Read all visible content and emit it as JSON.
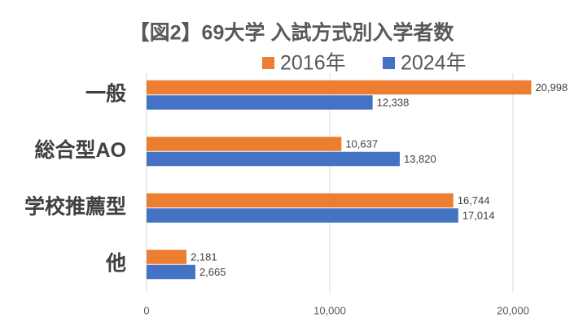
{
  "chart_data": {
    "type": "bar",
    "orientation": "horizontal",
    "title": "【図2】69大学 入試方式別入学者数",
    "categories": [
      "一般",
      "総合型AO",
      "学校推薦型",
      "他"
    ],
    "series": [
      {
        "name": "2016年",
        "color": "#ED7D31",
        "values": [
          20998,
          10637,
          16744,
          2181
        ],
        "value_labels": [
          "20,998",
          "10,637",
          "16,744",
          "2,181"
        ]
      },
      {
        "name": "2024年",
        "color": "#4472C4",
        "values": [
          12338,
          13820,
          17014,
          2665
        ],
        "value_labels": [
          "12,338",
          "13,820",
          "17,014",
          "2,665"
        ]
      }
    ],
    "xlim": [
      0,
      23000
    ],
    "xticks": [
      0,
      {
        "value": 10000,
        "label": "10,000"
      },
      {
        "value": 20000,
        "label": "20,000"
      }
    ],
    "grid": true,
    "legend": "top"
  }
}
